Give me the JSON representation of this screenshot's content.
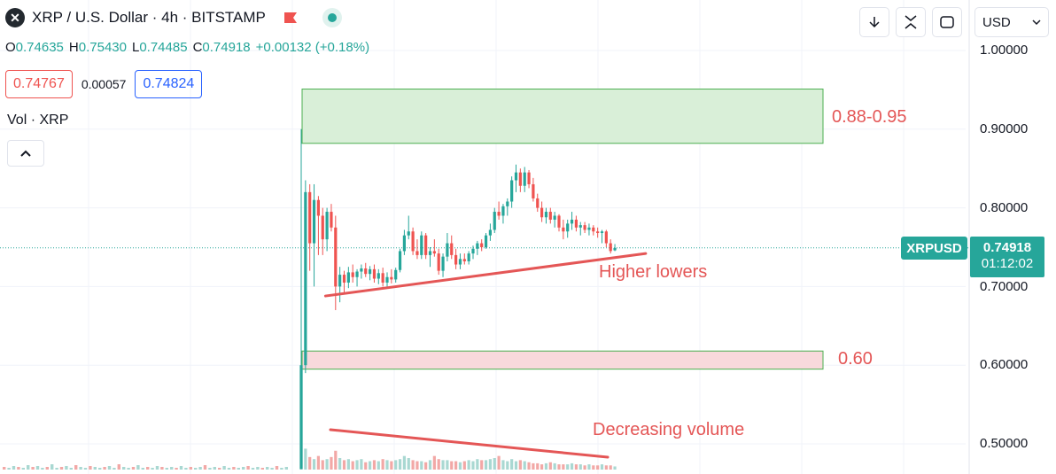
{
  "header": {
    "logo_letter": "✕",
    "title": "XRP / U.S. Dollar · 4h · BITSTAMP",
    "ohlc": {
      "o_label": "O",
      "o": "0.74635",
      "h_label": "H",
      "h": "0.75430",
      "l_label": "L",
      "l": "0.74485",
      "c_label": "C",
      "c": "0.74918",
      "change": "+0.00132 (+0.18%)"
    },
    "sell_price": "0.74767",
    "spread": "0.00057",
    "buy_price": "0.74824",
    "volume_label": "Vol · XRP"
  },
  "toolbar": {
    "currency": "USD",
    "icons": [
      "download-icon",
      "fullscreen-icon",
      "snapshot-icon"
    ]
  },
  "colors": {
    "up": "#26a69a",
    "down": "#ef5350",
    "annotation": "#e45656",
    "target_zone": "#d9efd8",
    "support_zone": "#f8d9dc"
  },
  "price_axis": {
    "labels": [
      "1.00000",
      "0.90000",
      "0.80000",
      "0.70000",
      "0.60000",
      "0.50000"
    ]
  },
  "current": {
    "symbol": "XRPUSD",
    "price": "0.74918",
    "countdown": "01:12:02"
  },
  "annotations": {
    "target": "0.88-0.95",
    "support": "0.60",
    "trend": "Higher lowers",
    "volume": "Decreasing volume"
  },
  "chart_data": {
    "type": "candlestick",
    "title": "XRP / U.S. Dollar · 4h · BITSTAMP",
    "ylim": [
      0.48,
      1.0
    ],
    "yticks": [
      1.0,
      0.9,
      0.8,
      0.7,
      0.6,
      0.5
    ],
    "grid": true,
    "zones": [
      {
        "label": "0.88-0.95",
        "from": 0.882,
        "to": 0.951
      },
      {
        "label": "0.60",
        "from": 0.595,
        "to": 0.618
      }
    ],
    "trendlines": [
      {
        "label": "Higher lowers",
        "from_candle": 4,
        "from_price": 0.688,
        "to_candle": 74,
        "to_price": 0.742
      },
      {
        "label": "Decreasing volume",
        "pane": "volume",
        "from_candle": 3,
        "to_candle": 71
      }
    ],
    "candles": [
      [
        0.468,
        0.9,
        0.468,
        0.6
      ],
      [
        0.6,
        0.835,
        0.59,
        0.82
      ],
      [
        0.82,
        0.83,
        0.72,
        0.755
      ],
      [
        0.755,
        0.83,
        0.7,
        0.81
      ],
      [
        0.81,
        0.815,
        0.74,
        0.79
      ],
      [
        0.79,
        0.8,
        0.74,
        0.76
      ],
      [
        0.76,
        0.8,
        0.745,
        0.795
      ],
      [
        0.795,
        0.805,
        0.77,
        0.775
      ],
      [
        0.775,
        0.79,
        0.67,
        0.7
      ],
      [
        0.7,
        0.725,
        0.68,
        0.715
      ],
      [
        0.715,
        0.72,
        0.69,
        0.705
      ],
      [
        0.705,
        0.725,
        0.698,
        0.718
      ],
      [
        0.718,
        0.728,
        0.705,
        0.712
      ],
      [
        0.712,
        0.722,
        0.7,
        0.719
      ],
      [
        0.719,
        0.728,
        0.71,
        0.723
      ],
      [
        0.723,
        0.73,
        0.712,
        0.716
      ],
      [
        0.716,
        0.726,
        0.708,
        0.722
      ],
      [
        0.722,
        0.728,
        0.705,
        0.71
      ],
      [
        0.71,
        0.722,
        0.703,
        0.717
      ],
      [
        0.717,
        0.724,
        0.7,
        0.705
      ],
      [
        0.705,
        0.718,
        0.698,
        0.712
      ],
      [
        0.712,
        0.722,
        0.704,
        0.709
      ],
      [
        0.709,
        0.724,
        0.705,
        0.721
      ],
      [
        0.721,
        0.748,
        0.718,
        0.745
      ],
      [
        0.745,
        0.772,
        0.74,
        0.765
      ],
      [
        0.765,
        0.79,
        0.76,
        0.77
      ],
      [
        0.77,
        0.775,
        0.74,
        0.745
      ],
      [
        0.745,
        0.76,
        0.735,
        0.74
      ],
      [
        0.74,
        0.77,
        0.735,
        0.765
      ],
      [
        0.765,
        0.768,
        0.735,
        0.74
      ],
      [
        0.74,
        0.75,
        0.725,
        0.745
      ],
      [
        0.745,
        0.76,
        0.738,
        0.742
      ],
      [
        0.742,
        0.748,
        0.715,
        0.72
      ],
      [
        0.72,
        0.742,
        0.712,
        0.738
      ],
      [
        0.738,
        0.768,
        0.732,
        0.755
      ],
      [
        0.755,
        0.765,
        0.735,
        0.74
      ],
      [
        0.74,
        0.748,
        0.722,
        0.728
      ],
      [
        0.728,
        0.742,
        0.722,
        0.735
      ],
      [
        0.735,
        0.742,
        0.728,
        0.732
      ],
      [
        0.732,
        0.745,
        0.728,
        0.742
      ],
      [
        0.742,
        0.752,
        0.735,
        0.748
      ],
      [
        0.748,
        0.758,
        0.74,
        0.755
      ],
      [
        0.755,
        0.76,
        0.745,
        0.75
      ],
      [
        0.75,
        0.768,
        0.748,
        0.765
      ],
      [
        0.765,
        0.78,
        0.758,
        0.772
      ],
      [
        0.772,
        0.8,
        0.768,
        0.795
      ],
      [
        0.795,
        0.808,
        0.785,
        0.79
      ],
      [
        0.79,
        0.805,
        0.78,
        0.802
      ],
      [
        0.802,
        0.812,
        0.79,
        0.808
      ],
      [
        0.808,
        0.84,
        0.8,
        0.835
      ],
      [
        0.835,
        0.855,
        0.82,
        0.845
      ],
      [
        0.845,
        0.85,
        0.82,
        0.828
      ],
      [
        0.828,
        0.852,
        0.82,
        0.845
      ],
      [
        0.845,
        0.848,
        0.825,
        0.83
      ],
      [
        0.83,
        0.838,
        0.808,
        0.812
      ],
      [
        0.812,
        0.818,
        0.795,
        0.8
      ],
      [
        0.8,
        0.808,
        0.782,
        0.788
      ],
      [
        0.788,
        0.8,
        0.78,
        0.795
      ],
      [
        0.795,
        0.8,
        0.78,
        0.785
      ],
      [
        0.785,
        0.795,
        0.775,
        0.79
      ],
      [
        0.79,
        0.792,
        0.77,
        0.775
      ],
      [
        0.775,
        0.785,
        0.76,
        0.77
      ],
      [
        0.77,
        0.785,
        0.762,
        0.78
      ],
      [
        0.78,
        0.795,
        0.772,
        0.785
      ],
      [
        0.785,
        0.79,
        0.77,
        0.775
      ],
      [
        0.775,
        0.782,
        0.765,
        0.778
      ],
      [
        0.778,
        0.782,
        0.768,
        0.772
      ],
      [
        0.772,
        0.78,
        0.765,
        0.775
      ],
      [
        0.775,
        0.778,
        0.765,
        0.77
      ],
      [
        0.77,
        0.775,
        0.762,
        0.768
      ],
      [
        0.768,
        0.772,
        0.755,
        0.77
      ],
      [
        0.77,
        0.772,
        0.75,
        0.755
      ],
      [
        0.755,
        0.76,
        0.742,
        0.745
      ],
      [
        0.746,
        0.754,
        0.745,
        0.749
      ]
    ],
    "volume": [
      0.95,
      0.2,
      0.12,
      0.1,
      0.13,
      0.09,
      0.1,
      0.12,
      0.18,
      0.11,
      0.09,
      0.1,
      0.08,
      0.09,
      0.1,
      0.07,
      0.08,
      0.09,
      0.08,
      0.1,
      0.09,
      0.08,
      0.09,
      0.1,
      0.13,
      0.11,
      0.09,
      0.08,
      0.08,
      0.07,
      0.09,
      0.13,
      0.1,
      0.09,
      0.09,
      0.08,
      0.08,
      0.07,
      0.08,
      0.09,
      0.08,
      0.1,
      0.09,
      0.09,
      0.1,
      0.11,
      0.13,
      0.09,
      0.08,
      0.1,
      0.08,
      0.09,
      0.08,
      0.07,
      0.06,
      0.06,
      0.05,
      0.06,
      0.07,
      0.06,
      0.05,
      0.05,
      0.05,
      0.06,
      0.05,
      0.05,
      0.04,
      0.05,
      0.04,
      0.04,
      0.05,
      0.04,
      0.04,
      0.03
    ],
    "pre_spike_volume": [
      0.03,
      0.02,
      0.04,
      0.03,
      0.02,
      0.05,
      0.03,
      0.04,
      0.02,
      0.03,
      0.06,
      0.02,
      0.03,
      0.04,
      0.02,
      0.05,
      0.03,
      0.02,
      0.04,
      0.03,
      0.02,
      0.03,
      0.04,
      0.02,
      0.06,
      0.03,
      0.02,
      0.03,
      0.05,
      0.02,
      0.03,
      0.02,
      0.04,
      0.03,
      0.02,
      0.03,
      0.02,
      0.04,
      0.02,
      0.03,
      0.02,
      0.03,
      0.05,
      0.02,
      0.03,
      0.02,
      0.04,
      0.02,
      0.03,
      0.02,
      0.03,
      0.04,
      0.02,
      0.03,
      0.02,
      0.03,
      0.02,
      0.04,
      0.02,
      0.03
    ]
  }
}
